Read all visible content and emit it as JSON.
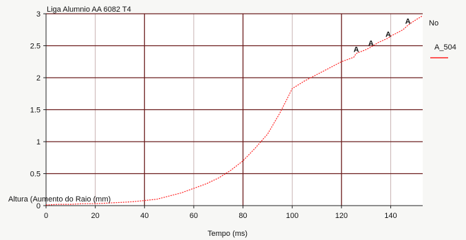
{
  "chart_data": {
    "type": "line",
    "title": "Liga Alumnio AA 6082 T4",
    "xlabel": "Tempo (ms)",
    "ylabel": "Altura (Aumento do Raio (mm)",
    "xlim": [
      0,
      153
    ],
    "ylim": [
      0,
      3
    ],
    "xticks": [
      0,
      20,
      40,
      60,
      80,
      100,
      120,
      140
    ],
    "yticks": [
      0,
      0.5,
      1,
      1.5,
      2,
      2.5,
      3
    ],
    "xtick_labels": [
      "0",
      "20",
      "40",
      "60",
      "80",
      "100",
      "120",
      "140"
    ],
    "ytick_labels": [
      "0",
      "0.5",
      "1",
      "1.5",
      "2",
      "2.5",
      "3"
    ],
    "grid": true,
    "legend": {
      "placement": "right",
      "header": "No",
      "entries": [
        "A_504"
      ]
    },
    "series": [
      {
        "name": "A_504",
        "color": "#ff2020",
        "marker_label": "A",
        "marker_x": [
          126,
          132,
          139,
          147
        ],
        "x": [
          0,
          5,
          10,
          15,
          20,
          25,
          30,
          35,
          40,
          45,
          50,
          55,
          60,
          65,
          70,
          75,
          80,
          85,
          90,
          95,
          100,
          105,
          110,
          115,
          120,
          125,
          126,
          130,
          132,
          135,
          139,
          140,
          145,
          147,
          150,
          153
        ],
        "y": [
          0.01,
          0.02,
          0.02,
          0.03,
          0.03,
          0.04,
          0.05,
          0.06,
          0.08,
          0.1,
          0.15,
          0.2,
          0.27,
          0.34,
          0.43,
          0.55,
          0.7,
          0.9,
          1.12,
          1.45,
          1.83,
          1.95,
          2.05,
          2.15,
          2.25,
          2.32,
          2.38,
          2.44,
          2.48,
          2.55,
          2.62,
          2.65,
          2.75,
          2.82,
          2.9,
          2.97
        ]
      }
    ]
  }
}
